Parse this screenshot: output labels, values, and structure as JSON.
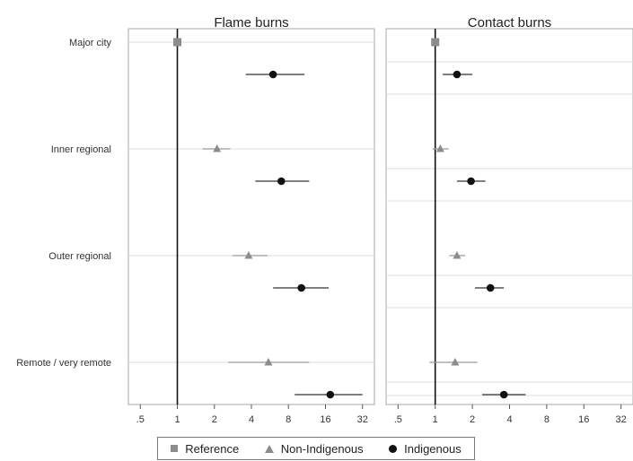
{
  "chart_data": {
    "type": "scatter",
    "subtype": "forest-plot",
    "x_scale": "log2",
    "x_ticks": [
      0.5,
      1,
      2,
      4,
      8,
      16,
      32
    ],
    "x_tick_labels": [
      ".5",
      "1",
      "2",
      "4",
      "8",
      "16",
      "32"
    ],
    "xlim": [
      0.4,
      40
    ],
    "reference_line": 1,
    "categories": [
      "Major city",
      "Inner regional",
      "Outer regional",
      "Remote / very remote"
    ],
    "legend": {
      "placement": "bottom",
      "entries": [
        {
          "name": "Reference",
          "symbol": "square",
          "color": "#8c8c8c"
        },
        {
          "name": "Non-Indigenous",
          "symbol": "triangle",
          "color": "#8c8c8c"
        },
        {
          "name": "Indigenous",
          "symbol": "circle",
          "color": "#111111"
        }
      ]
    },
    "panels": [
      {
        "title": "Flame burns",
        "show_category_labels": true,
        "grid": "horizontal-per-category",
        "points": [
          {
            "category": "Major city",
            "group": "Reference",
            "value": 1,
            "ci": [
              1,
              1
            ]
          },
          {
            "category": "Major city",
            "group": "Indigenous",
            "value": 6.0,
            "ci": [
              3.6,
              10.8
            ]
          },
          {
            "category": "Inner regional",
            "group": "Non-Indigenous",
            "value": 2.1,
            "ci": [
              1.6,
              2.7
            ]
          },
          {
            "category": "Inner regional",
            "group": "Indigenous",
            "value": 7.0,
            "ci": [
              4.3,
              11.8
            ]
          },
          {
            "category": "Outer regional",
            "group": "Non-Indigenous",
            "value": 3.8,
            "ci": [
              2.8,
              5.4
            ]
          },
          {
            "category": "Outer regional",
            "group": "Indigenous",
            "value": 10.2,
            "ci": [
              6.0,
              17.0
            ]
          },
          {
            "category": "Remote / very remote",
            "group": "Non-Indigenous",
            "value": 5.5,
            "ci": [
              2.6,
              11.8
            ]
          },
          {
            "category": "Remote / very remote",
            "group": "Indigenous",
            "value": 17.5,
            "ci": [
              9.0,
              32.0
            ]
          }
        ]
      },
      {
        "title": "Contact burns",
        "show_category_labels": false,
        "grid": "horizontal-per-marker",
        "points": [
          {
            "category": "Major city",
            "group": "Reference",
            "value": 1,
            "ci": [
              1,
              1
            ]
          },
          {
            "category": "Major city",
            "group": "Indigenous",
            "value": 1.5,
            "ci": [
              1.15,
              2.0
            ]
          },
          {
            "category": "Inner regional",
            "group": "Non-Indigenous",
            "value": 1.1,
            "ci": [
              0.95,
              1.28
            ]
          },
          {
            "category": "Inner regional",
            "group": "Indigenous",
            "value": 1.95,
            "ci": [
              1.5,
              2.55
            ]
          },
          {
            "category": "Outer regional",
            "group": "Non-Indigenous",
            "value": 1.5,
            "ci": [
              1.3,
              1.75
            ]
          },
          {
            "category": "Outer regional",
            "group": "Indigenous",
            "value": 2.8,
            "ci": [
              2.1,
              3.6
            ]
          },
          {
            "category": "Remote / very remote",
            "group": "Non-Indigenous",
            "value": 1.45,
            "ci": [
              0.9,
              2.2
            ]
          },
          {
            "category": "Remote / very remote",
            "group": "Indigenous",
            "value": 3.6,
            "ci": [
              2.4,
              5.4
            ]
          }
        ]
      }
    ]
  }
}
